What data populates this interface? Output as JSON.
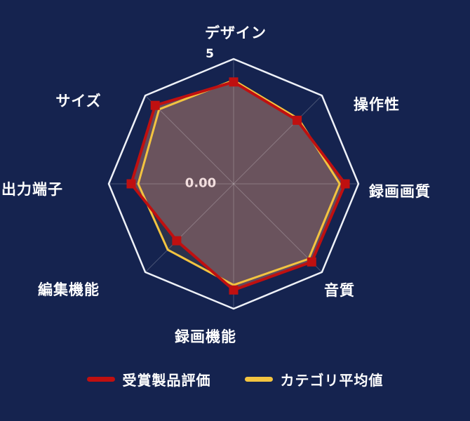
{
  "chart_data": {
    "type": "radar",
    "axes": [
      "デザイン",
      "操作性",
      "録画画質",
      "音質",
      "録画機能",
      "編集機能",
      "出力端子",
      "サイズ"
    ],
    "min": 0,
    "max": 5,
    "tick_labels": {
      "center": "0.00",
      "outer": "5"
    },
    "series": [
      {
        "name": "受賞製品評価",
        "color": "#bf1010",
        "marker": "square",
        "fill": "rgba(164,113,109,0.52)",
        "values": [
          4.08,
          3.6,
          4.47,
          4.42,
          4.25,
          3.22,
          4.1,
          4.44
        ]
      },
      {
        "name": "カテゴリ平均値",
        "color": "#f3c440",
        "marker": "none",
        "fill": "rgba(243,196,64,0.10)",
        "values": [
          4.15,
          3.68,
          4.25,
          4.25,
          4.05,
          3.73,
          3.82,
          4.22
        ]
      }
    ],
    "grid": {
      "outline_color": "#eef1f8",
      "spoke_color": "rgba(255,255,255,0.22)"
    },
    "background": "#15234f",
    "legend_position": "bottom"
  }
}
